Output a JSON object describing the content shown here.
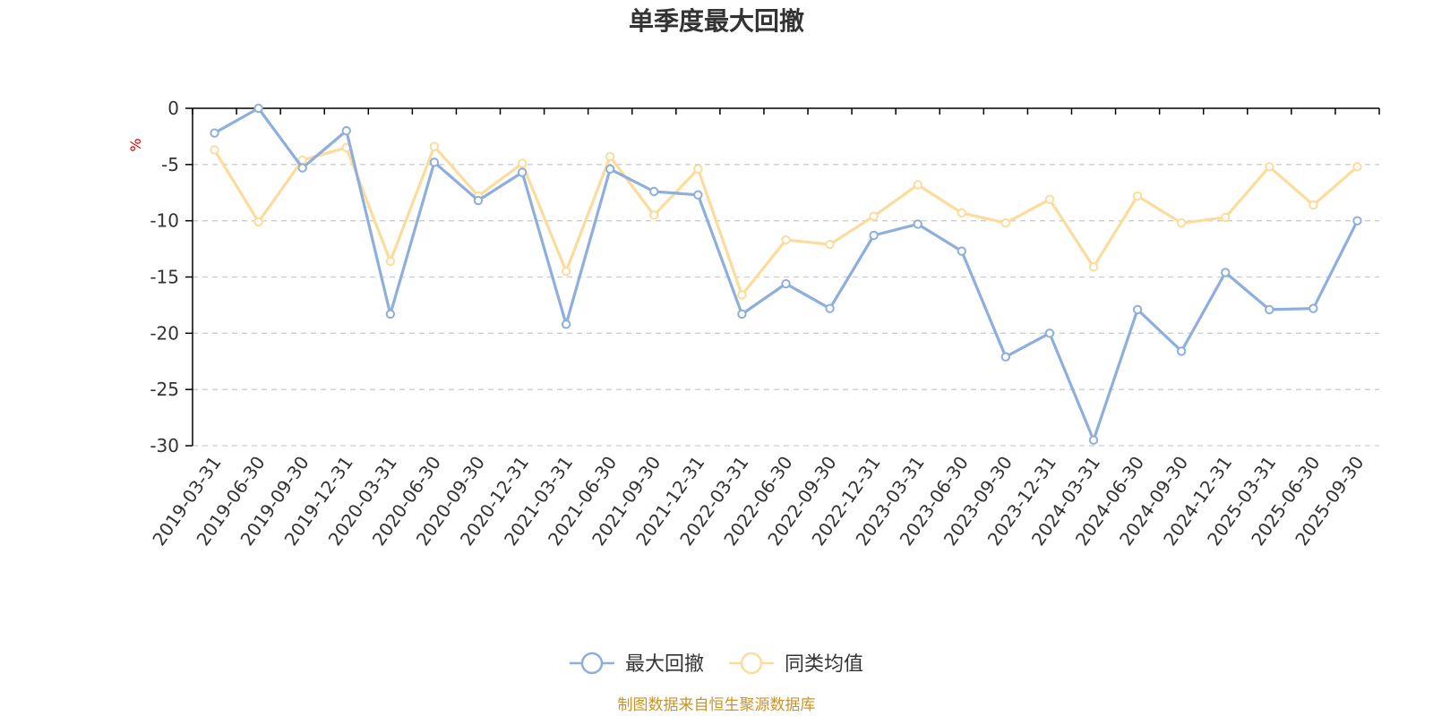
{
  "chart_data": {
    "type": "line",
    "title": "单季度最大回撤",
    "ylabel": "%",
    "xlabel": "",
    "ylim": [
      -30,
      0
    ],
    "yticks": [
      0,
      -5,
      -10,
      -15,
      -20,
      -25,
      -30
    ],
    "grid": true,
    "legend_position": "bottom-center",
    "categories": [
      "2019-03-31",
      "2019-06-30",
      "2019-09-30",
      "2019-12-31",
      "2020-03-31",
      "2020-06-30",
      "2020-09-30",
      "2020-12-31",
      "2021-03-31",
      "2021-06-30",
      "2021-09-30",
      "2021-12-31",
      "2022-03-31",
      "2022-06-30",
      "2022-09-30",
      "2022-12-31",
      "2023-03-31",
      "2023-06-30",
      "2023-09-30",
      "2023-12-31",
      "2024-03-31",
      "2024-06-30",
      "2024-09-30",
      "2024-12-31",
      "2025-03-31",
      "2025-06-30",
      "2025-09-30"
    ],
    "series": [
      {
        "name": "最大回撤",
        "color": "#8eaedb",
        "values": [
          -2.2,
          0.0,
          -5.3,
          -2.0,
          -18.3,
          -4.8,
          -8.2,
          -5.7,
          -19.2,
          -5.4,
          -7.4,
          -7.7,
          -18.3,
          -15.6,
          -17.8,
          -11.3,
          -10.3,
          -12.7,
          -22.1,
          -20.0,
          -29.5,
          -17.9,
          -21.6,
          -14.6,
          -17.9,
          -17.8,
          -10.0
        ]
      },
      {
        "name": "同类均值",
        "color": "#fbdc9c",
        "values": [
          -3.7,
          -10.1,
          -4.6,
          -3.5,
          -13.6,
          -3.4,
          -7.8,
          -4.9,
          -14.5,
          -4.3,
          -9.5,
          -5.4,
          -16.6,
          -11.7,
          -12.1,
          -9.6,
          -6.8,
          -9.3,
          -10.2,
          -8.1,
          -14.1,
          -7.8,
          -10.2,
          -9.7,
          -5.2,
          -8.6,
          -5.2
        ]
      }
    ]
  },
  "footer": {
    "source_text": "制图数据来自恒生聚源数据库"
  }
}
